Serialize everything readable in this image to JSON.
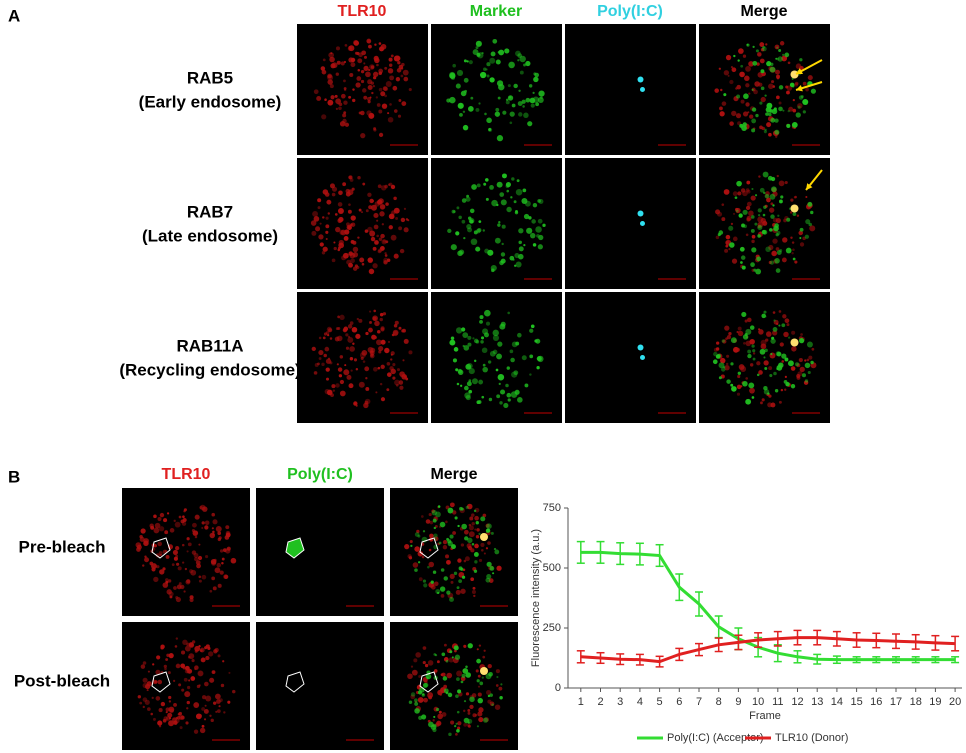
{
  "panel_a": {
    "label": "A",
    "columns": [
      "TLR10",
      "Marker",
      "Poly(I:C)",
      "Merge"
    ],
    "rows": [
      {
        "name": "RAB5",
        "sub": "(Early endosome)"
      },
      {
        "name": "RAB7",
        "sub": "(Late endosome)"
      },
      {
        "name": "RAB11A",
        "sub": "(Recycling endosome)"
      }
    ]
  },
  "panel_b": {
    "label": "B",
    "columns": [
      "TLR10",
      "Poly(I:C)",
      "Merge"
    ],
    "rows": [
      "Pre-bleach",
      "Post-bleach"
    ]
  },
  "chart_data": {
    "type": "line",
    "xlabel": "Frame",
    "ylabel": "Fluorescence intensity (a.u.)",
    "x": [
      1,
      2,
      3,
      4,
      5,
      6,
      7,
      8,
      9,
      10,
      11,
      12,
      13,
      14,
      15,
      16,
      17,
      18,
      19,
      20
    ],
    "xlim": [
      0.35,
      20.35
    ],
    "xticks": [
      1,
      2,
      3,
      4,
      5,
      6,
      7,
      8,
      9,
      10,
      11,
      12,
      13,
      14,
      15,
      16,
      17,
      18,
      19,
      20
    ],
    "ylim": [
      0,
      750
    ],
    "yticks": [
      0,
      250,
      500,
      750
    ],
    "legend": "bottom",
    "series": [
      {
        "name": "Poly(I:C) (Acceptor)",
        "color": "#33dd33",
        "values": [
          565,
          565,
          560,
          558,
          552,
          420,
          350,
          255,
          205,
          170,
          145,
          130,
          120,
          118,
          118,
          118,
          118,
          118,
          118,
          118
        ],
        "errors": [
          45,
          45,
          45,
          45,
          45,
          55,
          50,
          45,
          45,
          40,
          35,
          25,
          20,
          15,
          12,
          12,
          12,
          12,
          12,
          12
        ]
      },
      {
        "name": "TLR10 (Donor)",
        "color": "#e02020",
        "values": [
          130,
          125,
          120,
          118,
          110,
          140,
          160,
          180,
          190,
          200,
          205,
          210,
          210,
          205,
          200,
          198,
          195,
          192,
          188,
          185
        ],
        "errors": [
          25,
          22,
          22,
          22,
          22,
          25,
          25,
          28,
          30,
          30,
          30,
          30,
          30,
          30,
          30,
          30,
          30,
          30,
          30,
          30
        ]
      }
    ]
  }
}
